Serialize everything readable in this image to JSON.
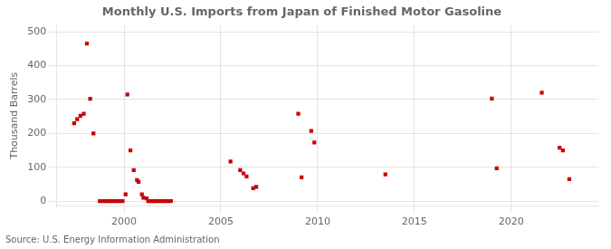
{
  "chart_data": {
    "type": "scatter",
    "title": "Monthly U.S. Imports from Japan of Finished Motor Gasoline",
    "y_label": "Thousand Barrels",
    "source": "Source: U.S. Energy Information Administration",
    "color": "#cc0000",
    "marker": "square",
    "grid": true,
    "xlim": [
      1996.5,
      2024.5
    ],
    "ylim": [
      -15,
      520
    ],
    "xticks": [
      2000,
      2005,
      2010,
      2015,
      2020
    ],
    "yticks": [
      0,
      100,
      200,
      300,
      400,
      500
    ],
    "x": [
      1997.42,
      1997.58,
      1997.75,
      1997.92,
      1998.08,
      1998.25,
      1998.42,
      1998.75,
      1998.92,
      1999.08,
      1999.25,
      1999.42,
      1999.58,
      1999.75,
      1999.92,
      2000.08,
      2000.17,
      2000.33,
      2000.5,
      2000.67,
      2000.75,
      2000.92,
      2001.0,
      2001.17,
      2001.25,
      2001.42,
      2001.58,
      2001.75,
      2001.92,
      2002.08,
      2002.25,
      2002.42,
      2005.5,
      2006.0,
      2006.17,
      2006.33,
      2006.67,
      2006.83,
      2009.0,
      2009.17,
      2009.67,
      2009.83,
      2013.5,
      2019.0,
      2019.25,
      2021.58,
      2022.5,
      2022.67,
      2023.0
    ],
    "values": [
      230,
      242,
      252,
      258,
      465,
      302,
      200,
      0,
      0,
      0,
      0,
      0,
      0,
      0,
      0,
      20,
      315,
      150,
      92,
      62,
      57,
      20,
      10,
      8,
      0,
      0,
      0,
      0,
      0,
      0,
      0,
      0,
      117,
      92,
      82,
      73,
      38,
      42,
      258,
      70,
      207,
      173,
      79,
      303,
      97,
      320,
      158,
      150,
      65
    ]
  }
}
